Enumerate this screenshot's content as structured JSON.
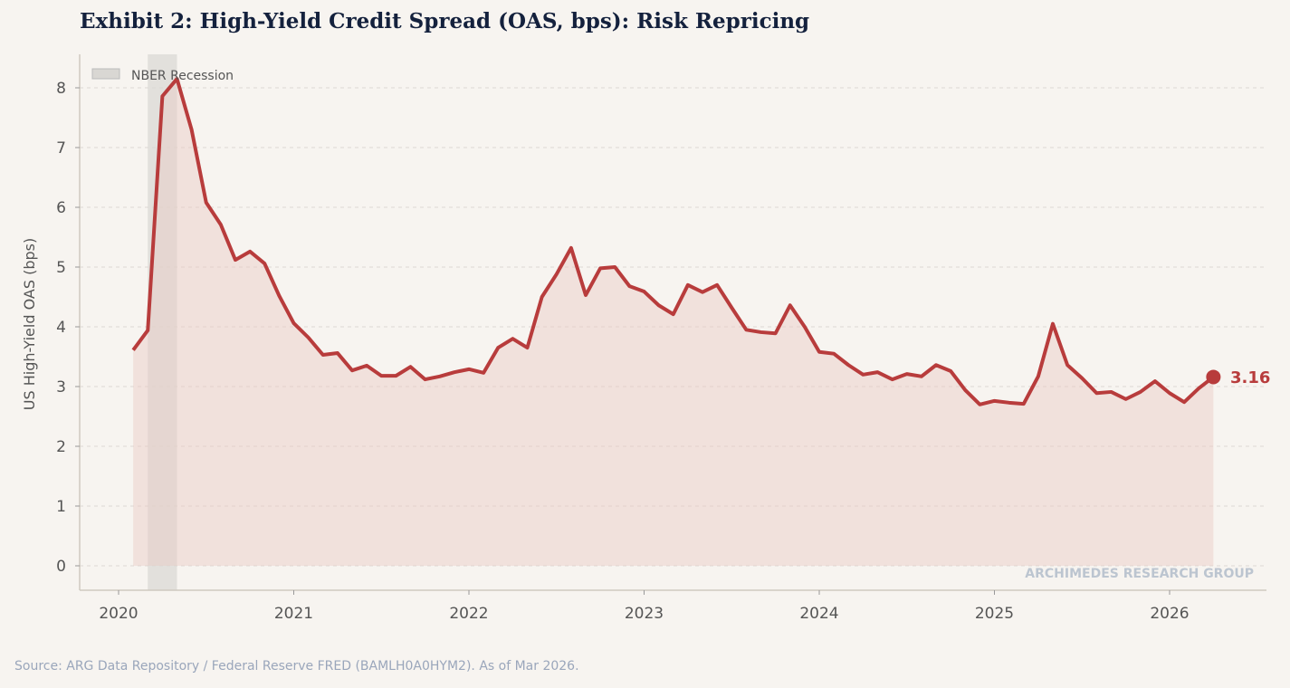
{
  "chart_data": {
    "type": "line",
    "title": "Exhibit 2: High-Yield Credit Spread (OAS, bps): Risk Repricing",
    "ylabel": "US High-Yield OAS (bps)",
    "xlabel": "",
    "ylim": [
      -0.4,
      8.55
    ],
    "xlim": [
      "2019-10",
      "2026-07"
    ],
    "yticks": [
      "0",
      "1",
      "2",
      "3",
      "4",
      "5",
      "6",
      "7",
      "8"
    ],
    "xticks": [
      "2020",
      "2021",
      "2022",
      "2023",
      "2024",
      "2025",
      "2026"
    ],
    "grid": "horizontal dashed",
    "legend": {
      "position": "top-left",
      "entries": [
        "NBER Recession"
      ]
    },
    "recession": {
      "start": "2020-02",
      "end": "2020-04",
      "label": "NBER Recession"
    },
    "last_value_label": "3.16",
    "colors": {
      "line": "#b83c3c",
      "fill": "#f0dfdc",
      "recession": "#d9d7d3"
    },
    "series": [
      {
        "x": [
          "2020-01",
          "2020-02",
          "2020-03",
          "2020-04",
          "2020-05",
          "2020-06",
          "2020-07",
          "2020-08",
          "2020-09",
          "2020-10",
          "2020-11",
          "2020-12",
          "2021-01",
          "2021-02",
          "2021-03",
          "2021-04",
          "2021-05",
          "2021-06",
          "2021-07",
          "2021-08",
          "2021-09",
          "2021-10",
          "2021-11",
          "2021-12",
          "2022-01",
          "2022-02",
          "2022-03",
          "2022-04",
          "2022-05",
          "2022-06",
          "2022-07",
          "2022-08",
          "2022-09",
          "2022-10",
          "2022-11",
          "2022-12",
          "2023-01",
          "2023-02",
          "2023-03",
          "2023-04",
          "2023-05",
          "2023-06",
          "2023-07",
          "2023-08",
          "2023-09",
          "2023-10",
          "2023-11",
          "2023-12",
          "2024-01",
          "2024-02",
          "2024-03",
          "2024-04",
          "2024-05",
          "2024-06",
          "2024-07",
          "2024-08",
          "2024-09",
          "2024-10",
          "2024-11",
          "2024-12",
          "2025-01",
          "2025-02",
          "2025-03",
          "2025-04",
          "2025-05",
          "2025-06",
          "2025-07",
          "2025-08",
          "2025-09",
          "2025-10",
          "2025-11",
          "2025-12",
          "2026-01",
          "2026-02",
          "2026-03"
        ],
        "values": [
          3.61,
          3.94,
          7.86,
          8.15,
          7.3,
          6.08,
          5.71,
          5.12,
          5.26,
          5.06,
          4.52,
          4.06,
          3.82,
          3.53,
          3.56,
          3.27,
          3.35,
          3.18,
          3.18,
          3.33,
          3.12,
          3.17,
          3.24,
          3.29,
          3.23,
          3.65,
          3.8,
          3.65,
          4.5,
          4.88,
          5.32,
          4.53,
          4.98,
          5.0,
          4.68,
          4.59,
          4.36,
          4.21,
          4.7,
          4.58,
          4.7,
          4.32,
          3.95,
          3.91,
          3.89,
          4.36,
          4.0,
          3.58,
          3.55,
          3.36,
          3.2,
          3.24,
          3.12,
          3.21,
          3.17,
          3.36,
          3.26,
          2.94,
          2.7,
          2.76,
          2.73,
          2.71,
          3.17,
          4.05,
          3.36,
          3.14,
          2.89,
          2.91,
          2.79,
          2.91,
          3.09,
          2.89,
          2.74,
          2.97,
          3.16
        ]
      }
    ]
  },
  "watermark": "ARCHIMEDES RESEARCH GROUP",
  "source": "Source: ARG Data Repository / Federal Reserve FRED (BAMLH0A0HYM2). As of Mar 2026."
}
